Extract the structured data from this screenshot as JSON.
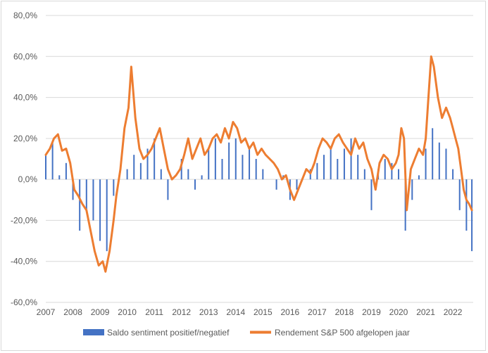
{
  "chart_data": {
    "type": "bar+line",
    "title": "",
    "xlabel": "",
    "ylabel": "",
    "ylim": [
      -60,
      80
    ],
    "y_ticks": [
      80,
      60,
      40,
      20,
      0,
      -20,
      -40,
      -60
    ],
    "y_tick_labels": [
      "80,0%",
      "60,0%",
      "40,0%",
      "20,0%",
      "0,0%",
      "-20,0%",
      "-40,0%",
      "-60,0%"
    ],
    "xlim": [
      2007,
      2022.75
    ],
    "x_ticks": [
      "2007",
      "2008",
      "2009",
      "2010",
      "2011",
      "2012",
      "2013",
      "2014",
      "2015",
      "2016",
      "2017",
      "2018",
      "2019",
      "2020",
      "2021",
      "2022"
    ],
    "grid": "horizontal",
    "legend_position": "bottom",
    "series": [
      {
        "name": "Saldo sentiment positief/negatief",
        "type": "bar",
        "color": "#4472c4",
        "x": [
          2007.0,
          2007.25,
          2007.5,
          2007.75,
          2008.0,
          2008.25,
          2008.5,
          2008.75,
          2009.0,
          2009.25,
          2009.5,
          2009.75,
          2010.0,
          2010.25,
          2010.5,
          2010.75,
          2011.0,
          2011.25,
          2011.5,
          2011.75,
          2012.0,
          2012.25,
          2012.5,
          2012.75,
          2013.0,
          2013.25,
          2013.5,
          2013.75,
          2014.0,
          2014.25,
          2014.5,
          2014.75,
          2015.0,
          2015.25,
          2015.5,
          2015.75,
          2016.0,
          2016.25,
          2016.5,
          2016.75,
          2017.0,
          2017.25,
          2017.5,
          2017.75,
          2018.0,
          2018.25,
          2018.5,
          2018.75,
          2019.0,
          2019.25,
          2019.5,
          2019.75,
          2020.0,
          2020.25,
          2020.5,
          2020.75,
          2021.0,
          2021.25,
          2021.5,
          2021.75,
          2022.0,
          2022.25,
          2022.5,
          2022.7
        ],
        "values": [
          12,
          18,
          2,
          8,
          -10,
          -25,
          -15,
          -20,
          -30,
          -35,
          -8,
          0,
          5,
          12,
          8,
          15,
          20,
          5,
          -10,
          0,
          10,
          5,
          -5,
          2,
          15,
          20,
          10,
          18,
          20,
          12,
          15,
          10,
          5,
          0,
          -5,
          2,
          -10,
          -5,
          0,
          5,
          8,
          12,
          15,
          10,
          15,
          20,
          12,
          5,
          -15,
          5,
          10,
          8,
          5,
          -25,
          -10,
          2,
          15,
          25,
          18,
          15,
          5,
          -15,
          -25,
          -35
        ]
      },
      {
        "name": "Rendement S&P 500 afgelopen jaar",
        "type": "line",
        "color": "#ed7d31",
        "x": [
          2007.0,
          2007.15,
          2007.3,
          2007.45,
          2007.6,
          2007.75,
          2007.9,
          2008.05,
          2008.2,
          2008.35,
          2008.5,
          2008.65,
          2008.8,
          2008.95,
          2009.1,
          2009.2,
          2009.35,
          2009.5,
          2009.6,
          2009.75,
          2009.9,
          2010.05,
          2010.15,
          2010.3,
          2010.45,
          2010.6,
          2010.75,
          2010.9,
          2011.05,
          2011.2,
          2011.35,
          2011.5,
          2011.65,
          2011.8,
          2011.95,
          2012.1,
          2012.25,
          2012.4,
          2012.55,
          2012.7,
          2012.85,
          2013.0,
          2013.15,
          2013.3,
          2013.45,
          2013.6,
          2013.75,
          2013.9,
          2014.05,
          2014.2,
          2014.35,
          2014.5,
          2014.65,
          2014.8,
          2014.95,
          2015.1,
          2015.25,
          2015.4,
          2015.55,
          2015.7,
          2015.85,
          2016.0,
          2016.15,
          2016.3,
          2016.45,
          2016.6,
          2016.75,
          2016.9,
          2017.05,
          2017.2,
          2017.35,
          2017.5,
          2017.65,
          2017.8,
          2017.95,
          2018.1,
          2018.25,
          2018.4,
          2018.55,
          2018.7,
          2018.85,
          2019.0,
          2019.15,
          2019.3,
          2019.45,
          2019.6,
          2019.75,
          2019.9,
          2020.0,
          2020.1,
          2020.2,
          2020.3,
          2020.45,
          2020.6,
          2020.75,
          2020.9,
          2021.0,
          2021.1,
          2021.2,
          2021.3,
          2021.45,
          2021.6,
          2021.75,
          2021.9,
          2022.0,
          2022.1,
          2022.2,
          2022.3,
          2022.4,
          2022.5,
          2022.6,
          2022.7
        ],
        "values": [
          12,
          15,
          20,
          22,
          14,
          15,
          8,
          -5,
          -8,
          -12,
          -15,
          -25,
          -35,
          -42,
          -40,
          -45,
          -35,
          -20,
          -8,
          5,
          25,
          35,
          55,
          30,
          15,
          10,
          12,
          15,
          20,
          25,
          15,
          5,
          0,
          2,
          5,
          12,
          20,
          10,
          15,
          20,
          12,
          15,
          20,
          22,
          18,
          25,
          20,
          28,
          25,
          18,
          20,
          15,
          18,
          12,
          15,
          12,
          10,
          8,
          5,
          0,
          2,
          -5,
          -10,
          -5,
          0,
          5,
          3,
          8,
          15,
          20,
          18,
          15,
          20,
          22,
          18,
          15,
          12,
          20,
          15,
          18,
          10,
          5,
          -5,
          8,
          12,
          10,
          5,
          8,
          12,
          25,
          20,
          -15,
          5,
          10,
          15,
          12,
          20,
          40,
          60,
          55,
          40,
          30,
          35,
          30,
          25,
          20,
          15,
          5,
          -5,
          -10,
          -12,
          -15
        ]
      }
    ]
  }
}
